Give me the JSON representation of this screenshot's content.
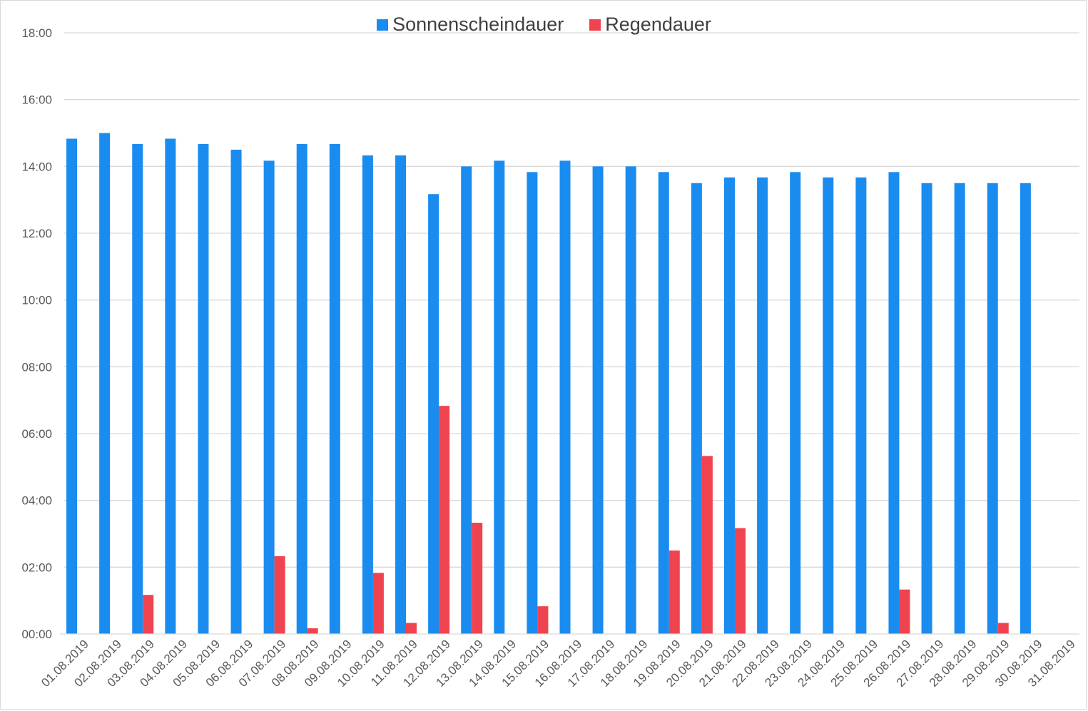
{
  "chart_data": {
    "type": "bar",
    "title": "",
    "xlabel": "",
    "ylabel": "",
    "ylim_hours": [
      0,
      18
    ],
    "yticks": [
      "00:00",
      "02:00",
      "04:00",
      "06:00",
      "08:00",
      "10:00",
      "12:00",
      "14:00",
      "16:00",
      "18:00"
    ],
    "grid": true,
    "legend_position": "top-center",
    "categories": [
      "01.08.2019",
      "02.08.2019",
      "03.08.2019",
      "04.08.2019",
      "05.08.2019",
      "06.08.2019",
      "07.08.2019",
      "08.08.2019",
      "09.08.2019",
      "10.08.2019",
      "11.08.2019",
      "12.08.2019",
      "13.08.2019",
      "14.08.2019",
      "15.08.2019",
      "16.08.2019",
      "17.08.2019",
      "18.08.2019",
      "19.08.2019",
      "20.08.2019",
      "21.08.2019",
      "22.08.2019",
      "23.08.2019",
      "24.08.2019",
      "25.08.2019",
      "26.08.2019",
      "27.08.2019",
      "28.08.2019",
      "29.08.2019",
      "30.08.2019",
      "31.08.2019"
    ],
    "series": [
      {
        "name": "Sonnenscheindauer",
        "color": "#1a8cf0",
        "values_hours": [
          14.83,
          15.0,
          14.67,
          14.83,
          14.67,
          14.5,
          14.17,
          14.67,
          14.67,
          14.33,
          14.33,
          13.17,
          14.0,
          14.17,
          13.83,
          14.17,
          14.0,
          14.0,
          13.83,
          13.5,
          13.67,
          13.67,
          13.83,
          13.67,
          13.67,
          13.83,
          13.5,
          13.5,
          13.5,
          13.5,
          0
        ]
      },
      {
        "name": "Regendauer",
        "color": "#ef4450",
        "values_hours": [
          0,
          0,
          1.17,
          0,
          0,
          0,
          2.33,
          0.17,
          0,
          1.83,
          0.33,
          6.83,
          3.33,
          0,
          0.83,
          0,
          0,
          0,
          2.5,
          5.33,
          3.17,
          0,
          0,
          0,
          0,
          1.33,
          0,
          0,
          0.33,
          0,
          0
        ]
      }
    ]
  }
}
